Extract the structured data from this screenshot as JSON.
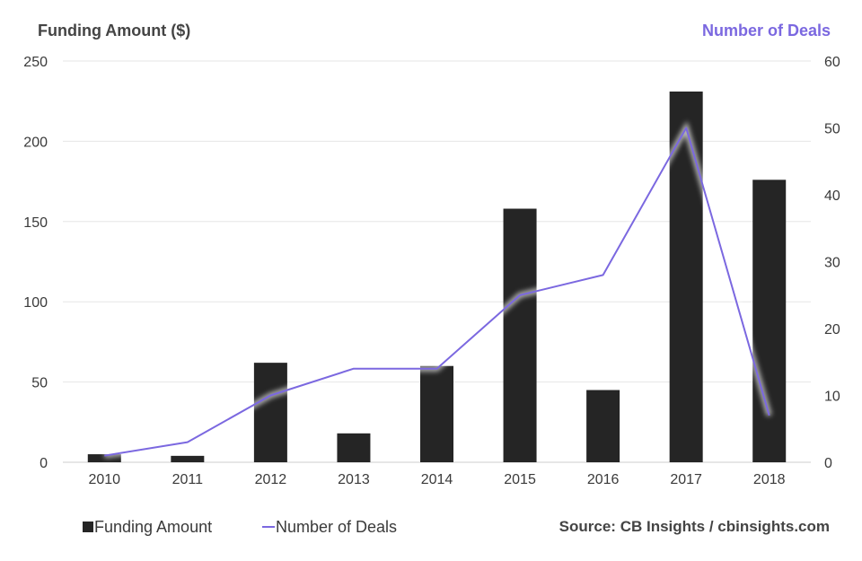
{
  "left_axis_title": "Funding Amount ($)",
  "right_axis_title": "Number of Deals",
  "source": "Source: CB Insights / cbinsights.com",
  "legend": {
    "bar_label": "Funding Amount",
    "line_label": "Number of Deals"
  },
  "colors": {
    "bar": "#252525",
    "line": "#7b68e0",
    "grid": "#e6e6e6",
    "left_title": "#444444",
    "right_title": "#7b68e0",
    "tick": "#3a3a3a"
  },
  "chart_data": {
    "type": "bar",
    "categories": [
      "2010",
      "2011",
      "2012",
      "2013",
      "2014",
      "2015",
      "2016",
      "2017",
      "2018"
    ],
    "series": [
      {
        "name": "Funding Amount",
        "type": "bar",
        "axis": "left",
        "values": [
          5,
          4,
          62,
          18,
          60,
          158,
          45,
          231,
          176
        ]
      },
      {
        "name": "Number of Deals",
        "type": "line",
        "axis": "right",
        "values": [
          1,
          3,
          10,
          14,
          14,
          25,
          28,
          50,
          7
        ]
      }
    ],
    "y_left": {
      "label": "Funding Amount ($)",
      "ylim": [
        0,
        250
      ],
      "ticks": [
        0,
        50,
        100,
        150,
        200,
        250
      ]
    },
    "y_right": {
      "label": "Number of Deals",
      "ylim": [
        0,
        60
      ],
      "ticks": [
        0,
        10,
        20,
        30,
        40,
        50,
        60
      ]
    },
    "grid": true,
    "legend_position": "bottom-left"
  }
}
